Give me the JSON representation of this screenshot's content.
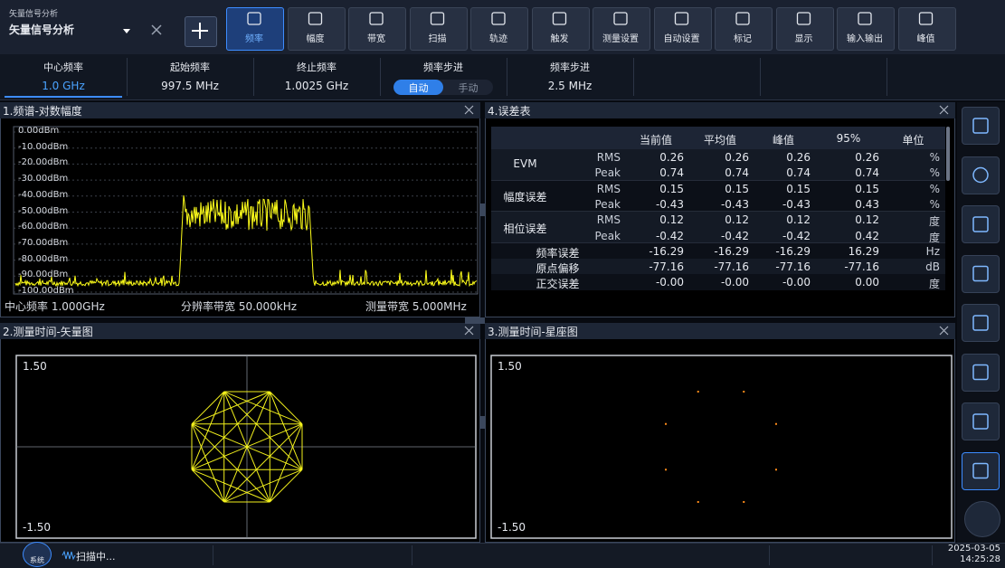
{
  "app": {
    "subtitle": "矢量信号分析",
    "title": "矢量信号分析"
  },
  "toolbar": [
    "频率",
    "幅度",
    "带宽",
    "扫描",
    "轨迹",
    "触发",
    "测量设置",
    "自动设置",
    "标记",
    "显示",
    "输入输出",
    "峰值"
  ],
  "params": [
    {
      "label": "中心频率",
      "value": "1.0 GHz"
    },
    {
      "label": "起始频率",
      "value": "997.5 MHz"
    },
    {
      "label": "终止频率",
      "value": "1.0025 GHz"
    },
    {
      "label": "频率步进",
      "options": [
        "自动",
        "手动"
      ]
    },
    {
      "label": "频率步进",
      "value": "2.5 MHz"
    }
  ],
  "spectrum": {
    "title": "1.频谱-对数幅度",
    "y_labels": [
      "0.00dBm",
      "-10.00dBm",
      "-20.00dBm",
      "-30.00dBm",
      "-40.00dBm",
      "-50.00dBm",
      "-60.00dBm",
      "-70.00dBm",
      "-80.00dBm",
      "-90.00dBm",
      "-100.00dBm"
    ],
    "footer": [
      "中心频率 1.000GHz",
      "分辨率带宽 50.000kHz",
      "测量带宽 5.000MHz"
    ]
  },
  "error_table": {
    "title": "4.误差表",
    "headers": [
      "当前值",
      "平均值",
      "峰值",
      "95%",
      "单位"
    ],
    "groups": [
      {
        "name": "EVM",
        "rows": [
          {
            "type": "RMS",
            "values": [
              "0.26",
              "0.26",
              "0.26",
              "0.26"
            ],
            "unit": "%"
          },
          {
            "type": "Peak",
            "values": [
              "0.74",
              "0.74",
              "0.74",
              "0.74"
            ],
            "unit": "%"
          }
        ]
      },
      {
        "name": "幅度误差",
        "rows": [
          {
            "type": "RMS",
            "values": [
              "0.15",
              "0.15",
              "0.15",
              "0.15"
            ],
            "unit": "%"
          },
          {
            "type": "Peak",
            "values": [
              "-0.43",
              "-0.43",
              "-0.43",
              "0.43"
            ],
            "unit": "%"
          }
        ]
      },
      {
        "name": "相位误差",
        "rows": [
          {
            "type": "RMS",
            "values": [
              "0.12",
              "0.12",
              "0.12",
              "0.12"
            ],
            "unit": "度"
          },
          {
            "type": "Peak",
            "values": [
              "-0.42",
              "-0.42",
              "-0.42",
              "0.42"
            ],
            "unit": "度"
          }
        ]
      }
    ],
    "rows": [
      {
        "name": "频率误差",
        "values": [
          "-16.29",
          "-16.29",
          "-16.29",
          "16.29"
        ],
        "unit": "Hz"
      },
      {
        "name": "原点偏移",
        "values": [
          "-77.16",
          "-77.16",
          "-77.16",
          "-77.16"
        ],
        "unit": "dB"
      },
      {
        "name": "正交误差",
        "values": [
          "-0.00",
          "-0.00",
          "-0.00",
          "0.00"
        ],
        "unit": "度"
      }
    ]
  },
  "vector": {
    "title": "2.测量时间-矢量图",
    "top": "1.50",
    "bottom": "-1.50"
  },
  "constellation": {
    "title": "3.测量时间-星座图",
    "top": "1.50",
    "bottom": "-1.50"
  },
  "status": {
    "system": "系统",
    "scan": "扫描中...",
    "date": "2025-03-05",
    "time": "14:25:28"
  }
}
